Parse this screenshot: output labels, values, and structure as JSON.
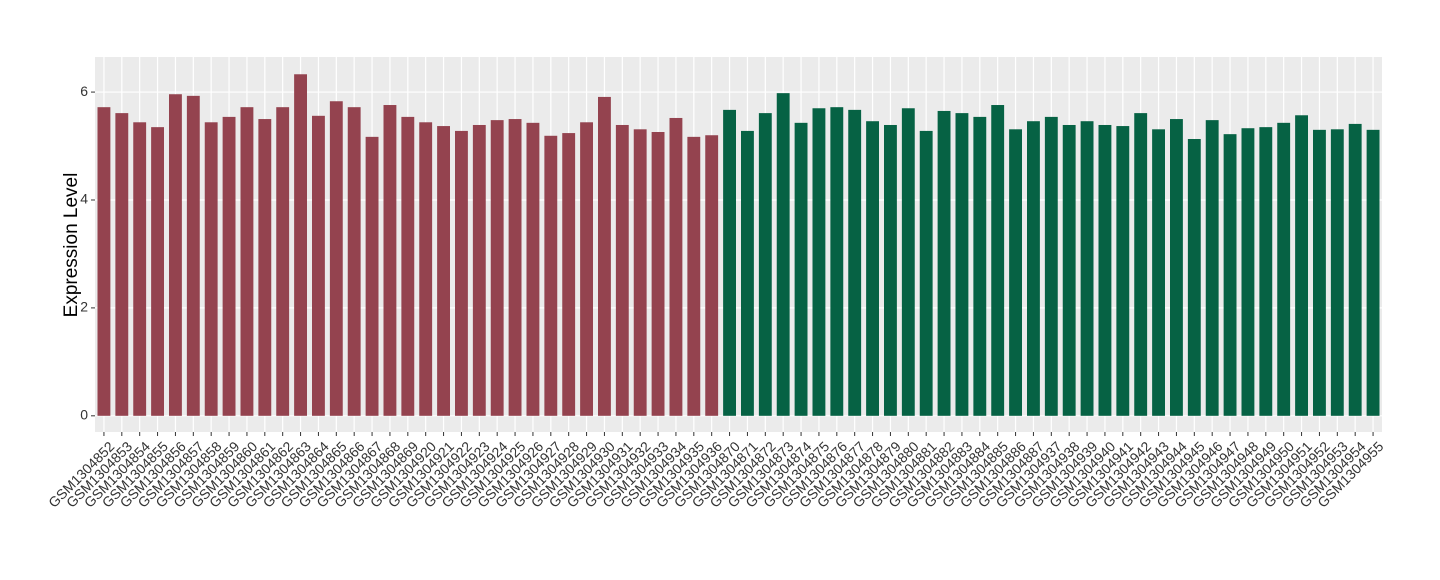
{
  "chart_data": {
    "type": "bar",
    "y_label": "Expression Level",
    "categories": [
      "GSM1304852",
      "GSM1304853",
      "GSM1304854",
      "GSM1304855",
      "GSM1304856",
      "GSM1304857",
      "GSM1304858",
      "GSM1304859",
      "GSM1304860",
      "GSM1304861",
      "GSM1304862",
      "GSM1304863",
      "GSM1304864",
      "GSM1304865",
      "GSM1304866",
      "GSM1304867",
      "GSM1304868",
      "GSM1304869",
      "GSM1304920",
      "GSM1304921",
      "GSM1304922",
      "GSM1304923",
      "GSM1304924",
      "GSM1304925",
      "GSM1304926",
      "GSM1304927",
      "GSM1304928",
      "GSM1304929",
      "GSM1304930",
      "GSM1304931",
      "GSM1304932",
      "GSM1304933",
      "GSM1304934",
      "GSM1304935",
      "GSM1304936",
      "GSM1304870",
      "GSM1304871",
      "GSM1304872",
      "GSM1304873",
      "GSM1304874",
      "GSM1304875",
      "GSM1304876",
      "GSM1304877",
      "GSM1304878",
      "GSM1304879",
      "GSM1304880",
      "GSM1304881",
      "GSM1304882",
      "GSM1304883",
      "GSM1304884",
      "GSM1304885",
      "GSM1304886",
      "GSM1304887",
      "GSM1304937",
      "GSM1304938",
      "GSM1304939",
      "GSM1304940",
      "GSM1304941",
      "GSM1304942",
      "GSM1304943",
      "GSM1304944",
      "GSM1304945",
      "GSM1304946",
      "GSM1304947",
      "GSM1304948",
      "GSM1304949",
      "GSM1304950",
      "GSM1304951",
      "GSM1304952",
      "GSM1304953",
      "GSM1304954",
      "GSM1304955"
    ],
    "values": [
      5.72,
      5.61,
      5.44,
      5.35,
      5.96,
      5.93,
      5.44,
      5.54,
      5.72,
      5.5,
      5.72,
      6.33,
      5.56,
      5.83,
      5.72,
      5.17,
      5.76,
      5.54,
      5.44,
      5.37,
      5.28,
      5.39,
      5.48,
      5.5,
      5.43,
      5.19,
      5.24,
      5.44,
      5.91,
      5.39,
      5.31,
      5.26,
      5.52,
      5.17,
      5.2,
      5.67,
      5.28,
      5.61,
      5.98,
      5.43,
      5.7,
      5.72,
      5.67,
      5.46,
      5.39,
      5.7,
      5.28,
      5.65,
      5.61,
      5.54,
      5.76,
      5.31,
      5.46,
      5.54,
      5.39,
      5.46,
      5.39,
      5.37,
      5.61,
      5.31,
      5.5,
      5.13,
      5.48,
      5.22,
      5.33,
      5.35,
      5.43,
      5.57,
      5.3,
      5.31,
      5.41,
      5.3
    ],
    "colors": [
      "#94434f",
      "#94434f",
      "#94434f",
      "#94434f",
      "#94434f",
      "#94434f",
      "#94434f",
      "#94434f",
      "#94434f",
      "#94434f",
      "#94434f",
      "#94434f",
      "#94434f",
      "#94434f",
      "#94434f",
      "#94434f",
      "#94434f",
      "#94434f",
      "#94434f",
      "#94434f",
      "#94434f",
      "#94434f",
      "#94434f",
      "#94434f",
      "#94434f",
      "#94434f",
      "#94434f",
      "#94434f",
      "#94434f",
      "#94434f",
      "#94434f",
      "#94434f",
      "#94434f",
      "#94434f",
      "#94434f",
      "#066244",
      "#066244",
      "#066244",
      "#066244",
      "#066244",
      "#066244",
      "#066244",
      "#066244",
      "#066244",
      "#066244",
      "#066244",
      "#066244",
      "#066244",
      "#066244",
      "#066244",
      "#066244",
      "#066244",
      "#066244",
      "#066244",
      "#066244",
      "#066244",
      "#066244",
      "#066244",
      "#066244",
      "#066244",
      "#066244",
      "#066244",
      "#066244",
      "#066244",
      "#066244",
      "#066244",
      "#066244",
      "#066244",
      "#066244",
      "#066244",
      "#066244",
      "#066244"
    ],
    "ylim": [
      -0.3,
      6.65
    ],
    "yticks": [
      0,
      2,
      4,
      6
    ],
    "grid": true
  }
}
